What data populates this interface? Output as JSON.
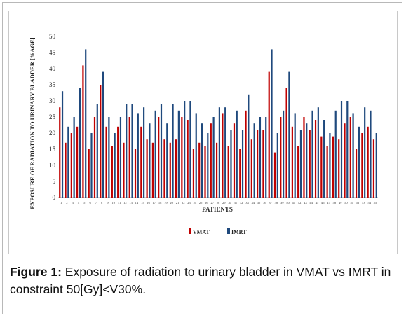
{
  "chart_data": {
    "type": "bar",
    "ylabel": "EXPOSURE OF RADIATION TO URINARY BLADDER [%AGE]",
    "xlabel": "PATIENTS",
    "ylim": [
      0,
      50
    ],
    "yticks": [
      0,
      5,
      10,
      15,
      20,
      25,
      30,
      35,
      40,
      45,
      50
    ],
    "categories": [
      "1",
      "2",
      "3",
      "4",
      "5",
      "6",
      "7",
      "8",
      "9",
      "10",
      "11",
      "12",
      "13",
      "14",
      "15",
      "16",
      "17",
      "18",
      "19",
      "20",
      "21",
      "22",
      "23",
      "24",
      "25",
      "26",
      "27",
      "28",
      "29",
      "30",
      "31",
      "32",
      "33",
      "34",
      "35",
      "36",
      "37",
      "38",
      "39",
      "40",
      "41",
      "42",
      "43",
      "44",
      "45",
      "46",
      "47",
      "48",
      "49",
      "50",
      "51",
      "52",
      "53",
      "54",
      "55"
    ],
    "legend_position": "bottom",
    "series": [
      {
        "name": "VMAT",
        "color": "#c00000",
        "values": [
          28,
          17,
          20,
          22,
          41,
          15,
          25,
          35,
          22,
          16,
          22,
          17,
          25,
          15,
          22,
          18,
          17,
          25,
          18,
          17,
          18,
          25,
          24,
          15,
          17,
          16,
          23,
          17,
          26,
          16,
          23,
          15,
          27,
          18,
          21,
          21,
          39,
          14,
          25,
          34,
          22,
          16,
          25,
          21,
          24,
          19,
          16,
          19,
          18,
          23,
          25,
          15,
          20,
          22,
          18
        ]
      },
      {
        "name": "IMRT",
        "color": "#1f497d",
        "values": [
          33,
          22,
          25,
          34,
          46,
          20,
          29,
          39,
          25,
          20,
          25,
          29,
          29,
          26,
          28,
          23,
          27,
          29,
          23,
          29,
          27,
          30,
          30,
          26,
          23,
          20,
          25,
          28,
          28,
          21,
          27,
          21,
          32,
          23,
          25,
          25,
          46,
          20,
          27,
          39,
          26,
          21,
          23,
          27,
          28,
          24,
          20,
          27,
          30,
          30,
          26,
          22,
          28,
          27,
          20
        ]
      }
    ]
  },
  "caption": {
    "label": "Figure 1:",
    "text": " Exposure of radiation to urinary bladder in VMAT vs IMRT in constraint 50[Gy]<V30%."
  }
}
